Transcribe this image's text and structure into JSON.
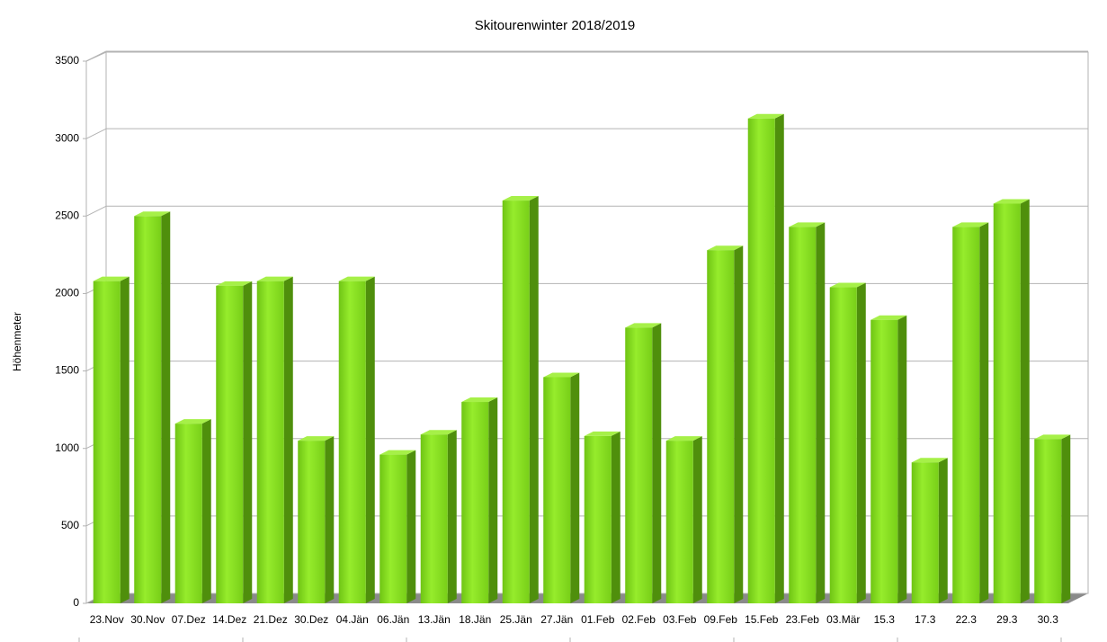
{
  "chart_data": {
    "type": "bar",
    "title": "Skitourenwinter 2018/2019",
    "y_label": "Höhenmeter",
    "categories": [
      "23.Nov",
      "30.Nov",
      "07.Dez",
      "14.Dez",
      "21.Dez",
      "30.Dez",
      "04.Jän",
      "06.Jän",
      "13.Jän",
      "18.Jän",
      "25.Jän",
      "27.Jän",
      "01.Feb",
      "02.Feb",
      "03.Feb",
      "09.Feb",
      "15.Feb",
      "23.Feb",
      "03.Mär",
      "15.3",
      "17.3",
      "22.3",
      "29.3",
      "30.3"
    ],
    "values": [
      2080,
      2500,
      1160,
      2050,
      2080,
      1050,
      2080,
      960,
      1090,
      1300,
      2600,
      1460,
      1080,
      1780,
      1050,
      2280,
      3130,
      2430,
      2040,
      1830,
      910,
      2430,
      2580,
      1060
    ],
    "color": "#7fd61c",
    "ylim": [
      0,
      3500
    ],
    "yticks": [
      0,
      500,
      1000,
      1500,
      2000,
      2500,
      3000,
      3500
    ],
    "grid": true
  }
}
